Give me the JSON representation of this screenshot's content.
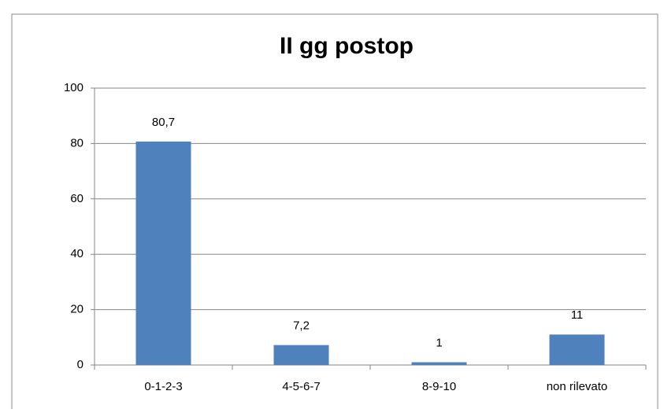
{
  "chart_data": {
    "type": "bar",
    "title": "II gg postop",
    "categories": [
      "0-1-2-3",
      "4-5-6-7",
      "8-9-10",
      "non rilevato"
    ],
    "values": [
      80.7,
      7.2,
      1,
      11
    ],
    "value_labels": [
      "80,7",
      "7,2",
      "1",
      "11"
    ],
    "color": "#4f81bd",
    "ylim": [
      0,
      100
    ],
    "yticks": [
      0,
      20,
      40,
      60,
      80,
      100
    ],
    "grid": true
  }
}
